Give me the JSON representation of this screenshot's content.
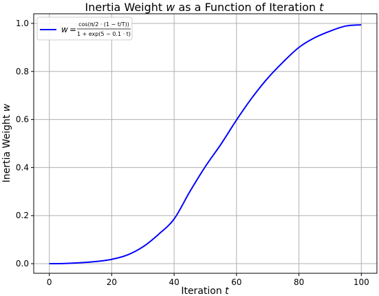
{
  "chart_data": {
    "type": "line",
    "title_prefix": "Inertia Weight ",
    "title_var": "w",
    "title_mid": " as a Function of Iteration ",
    "title_var2": "t",
    "xlabel_prefix": "Iteration ",
    "xlabel_var": "t",
    "ylabel_prefix": "Inertia Weight ",
    "ylabel_var": "w",
    "xlim": [
      -5,
      105
    ],
    "ylim": [
      -0.04,
      1.04
    ],
    "xticks": [
      "0",
      "20",
      "40",
      "60",
      "80",
      "100"
    ],
    "yticks": [
      "0.0",
      "0.2",
      "0.4",
      "0.6",
      "0.8",
      "1.0"
    ],
    "grid": true,
    "legend_position": "top-left",
    "legend": {
      "w": "w",
      "eq": "=",
      "num": "cos(π/2 · (1 − t/T))",
      "den": "1 + exp(5 − 0.1 · t)"
    },
    "series": [
      {
        "color": "#0000ff",
        "x": [
          0,
          5,
          10,
          15,
          20,
          25,
          30,
          35,
          40,
          45,
          50,
          55,
          60,
          65,
          70,
          75,
          80,
          85,
          90,
          95,
          100
        ],
        "y": [
          0.0,
          0.001,
          0.004,
          0.009,
          0.018,
          0.036,
          0.07,
          0.122,
          0.186,
          0.299,
          0.404,
          0.497,
          0.598,
          0.691,
          0.772,
          0.84,
          0.9,
          0.94,
          0.968,
          0.989,
          0.994
        ]
      }
    ]
  }
}
